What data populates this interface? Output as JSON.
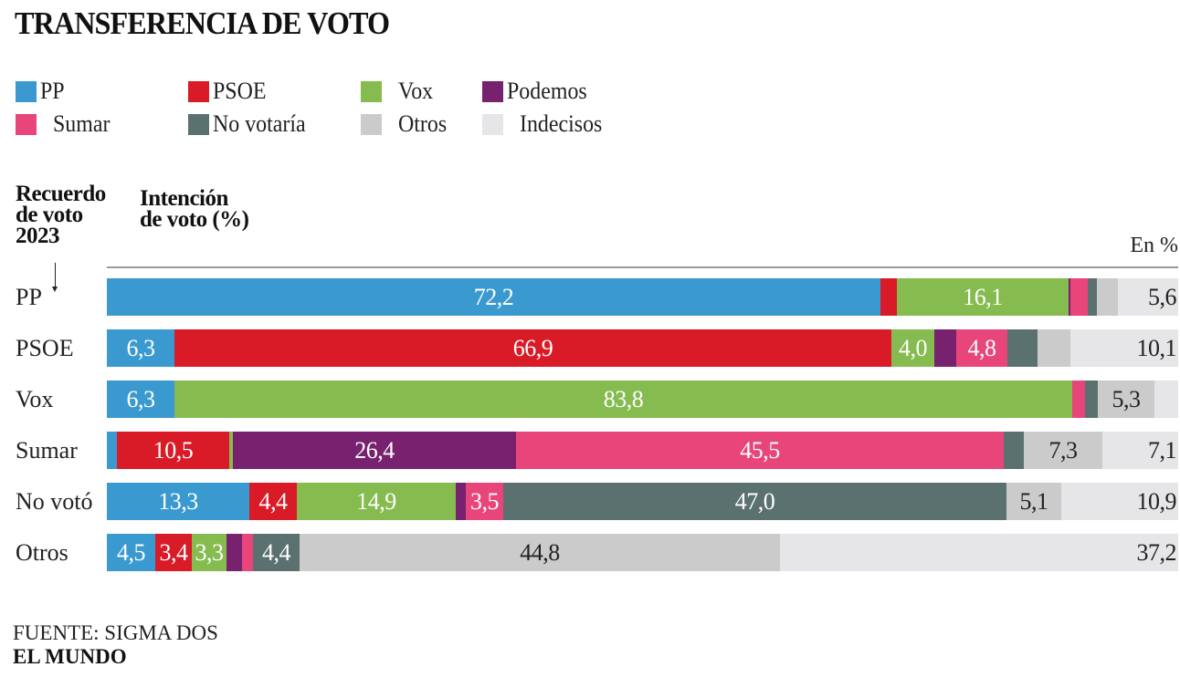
{
  "title": "TRANSFERENCIA DE VOTO",
  "legend": [
    {
      "name": "PP",
      "color": "#3a9ad0"
    },
    {
      "name": "PSOE",
      "color": "#d91a27"
    },
    {
      "name": "Vox",
      "color": "#86bb50"
    },
    {
      "name": "Podemos",
      "color": "#77216f"
    },
    {
      "name": "Sumar",
      "color": "#e8457a"
    },
    {
      "name": "No votaría",
      "color": "#5b7170"
    },
    {
      "name": "Otros",
      "color": "#cbcbcb"
    },
    {
      "name": "Indecisos",
      "color": "#e6e6e8"
    }
  ],
  "headers": {
    "recall": "Recuerdo de voto 2023",
    "recall_lines": [
      "Recuerdo",
      "de voto",
      "2023"
    ],
    "intention_lines": [
      "Intención",
      "de voto (%)"
    ],
    "unit": "En %"
  },
  "chart_data": {
    "type": "bar",
    "orientation": "horizontal",
    "stacked": true,
    "title": "TRANSFERENCIA DE VOTO",
    "xlabel": "Intención de voto (%)",
    "ylabel": "Recuerdo de voto 2023",
    "unit": "En %",
    "xlim": [
      0,
      100
    ],
    "grid": false,
    "legend_position": "top-left",
    "categories": [
      "PP",
      "PSOE",
      "Vox",
      "Sumar",
      "No votó",
      "Otros"
    ],
    "series": [
      {
        "name": "PP",
        "values": [
          72.2,
          6.3,
          6.3,
          0.9,
          13.3,
          4.5
        ]
      },
      {
        "name": "PSOE",
        "values": [
          1.5,
          66.9,
          0.0,
          10.5,
          4.4,
          3.4
        ]
      },
      {
        "name": "Vox",
        "values": [
          16.1,
          4.0,
          83.8,
          0.4,
          14.9,
          3.3
        ]
      },
      {
        "name": "Podemos",
        "values": [
          0.1,
          2.1,
          0.0,
          26.4,
          0.9,
          1.4
        ]
      },
      {
        "name": "Sumar",
        "values": [
          1.7,
          4.8,
          1.2,
          45.5,
          3.5,
          1.0
        ]
      },
      {
        "name": "No votaría",
        "values": [
          0.8,
          2.8,
          1.2,
          1.9,
          47.0,
          4.4
        ]
      },
      {
        "name": "Otros",
        "values": [
          2.0,
          3.0,
          5.3,
          7.3,
          5.1,
          44.8
        ]
      },
      {
        "name": "Indecisos",
        "values": [
          5.6,
          10.1,
          2.2,
          7.1,
          10.9,
          37.2
        ]
      }
    ],
    "data_labels": [
      {
        "row": "PP",
        "series": "PP",
        "text": "72,2"
      },
      {
        "row": "PP",
        "series": "Vox",
        "text": "16,1"
      },
      {
        "row": "PP",
        "series": "Indecisos",
        "text": "5,6"
      },
      {
        "row": "PSOE",
        "series": "PP",
        "text": "6,3"
      },
      {
        "row": "PSOE",
        "series": "PSOE",
        "text": "66,9"
      },
      {
        "row": "PSOE",
        "series": "Vox",
        "text": "4,0"
      },
      {
        "row": "PSOE",
        "series": "Sumar",
        "text": "4,8"
      },
      {
        "row": "PSOE",
        "series": "Indecisos",
        "text": "10,1"
      },
      {
        "row": "Vox",
        "series": "PP",
        "text": "6,3"
      },
      {
        "row": "Vox",
        "series": "Vox",
        "text": "83,8"
      },
      {
        "row": "Vox",
        "series": "Otros",
        "text": "5,3"
      },
      {
        "row": "Sumar",
        "series": "PSOE",
        "text": "10,5"
      },
      {
        "row": "Sumar",
        "series": "Podemos",
        "text": "26,4"
      },
      {
        "row": "Sumar",
        "series": "Sumar",
        "text": "45,5"
      },
      {
        "row": "Sumar",
        "series": "Otros",
        "text": "7,3"
      },
      {
        "row": "Sumar",
        "series": "Indecisos",
        "text": "7,1"
      },
      {
        "row": "No votó",
        "series": "PP",
        "text": "13,3"
      },
      {
        "row": "No votó",
        "series": "PSOE",
        "text": "4,4"
      },
      {
        "row": "No votó",
        "series": "Vox",
        "text": "14,9"
      },
      {
        "row": "No votó",
        "series": "Sumar",
        "text": "3,5"
      },
      {
        "row": "No votó",
        "series": "No votaría",
        "text": "47,0"
      },
      {
        "row": "No votó",
        "series": "Otros",
        "text": "5,1"
      },
      {
        "row": "No votó",
        "series": "Indecisos",
        "text": "10,9"
      },
      {
        "row": "Otros",
        "series": "PP",
        "text": "4,5"
      },
      {
        "row": "Otros",
        "series": "PSOE",
        "text": "3,4"
      },
      {
        "row": "Otros",
        "series": "Vox",
        "text": "3,3"
      },
      {
        "row": "Otros",
        "series": "No votaría",
        "text": "4,4"
      },
      {
        "row": "Otros",
        "series": "Otros",
        "text": "44,8"
      },
      {
        "row": "Otros",
        "series": "Indecisos",
        "text": "37,2"
      }
    ]
  },
  "footer": {
    "source": "FUENTE: SIGMA DOS",
    "brand": "EL MUNDO"
  }
}
